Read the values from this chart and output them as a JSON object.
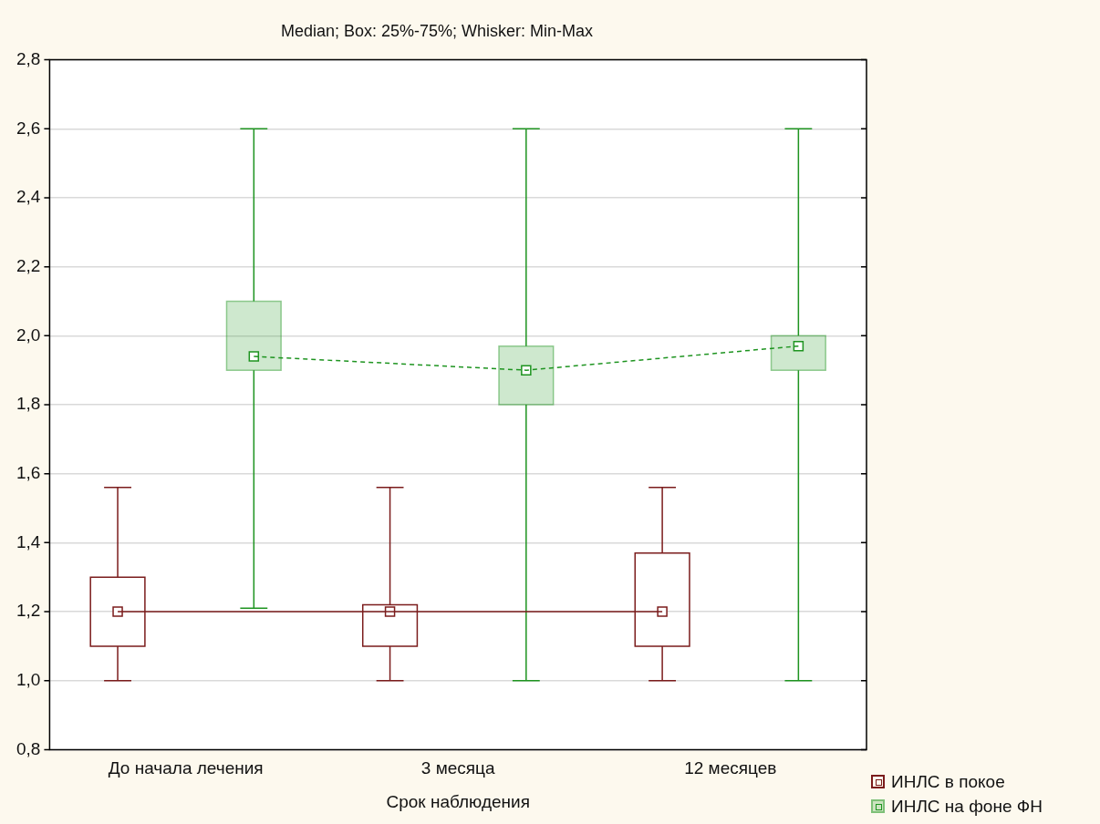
{
  "chart_data": {
    "type": "box",
    "title": "Median; Box: 25%-75%; Whisker: Min-Max",
    "xlabel": "Срок наблюдения",
    "categories": [
      "До начала лечения",
      "3 месяца",
      "12 месяцев"
    ],
    "series": [
      {
        "name": "ИНЛС в покое",
        "color": "#7b1c1c",
        "boxes": [
          {
            "low": 1.0,
            "q1": 1.1,
            "median": 1.2,
            "q3": 1.3,
            "high": 1.56
          },
          {
            "low": 1.0,
            "q1": 1.1,
            "median": 1.2,
            "q3": 1.22,
            "high": 1.56
          },
          {
            "low": 1.0,
            "q1": 1.1,
            "median": 1.2,
            "q3": 1.37,
            "high": 1.56
          }
        ]
      },
      {
        "name": "ИНЛС на фоне ФН",
        "color": "#1e9420",
        "boxes": [
          {
            "low": 1.21,
            "q1": 1.9,
            "median": 1.94,
            "q3": 2.1,
            "high": 2.6
          },
          {
            "low": 1.0,
            "q1": 1.8,
            "median": 1.9,
            "q3": 1.97,
            "high": 2.6
          },
          {
            "low": 1.0,
            "q1": 1.9,
            "median": 1.97,
            "q3": 2.0,
            "high": 2.6
          }
        ]
      },
      {
        "type": "line",
        "color": "#7b1c1c",
        "line_style": "solid",
        "marker": "none",
        "values": [
          1.2,
          1.2,
          1.2
        ]
      },
      {
        "type": "line",
        "color": "#1e9420",
        "line_style": "dashed",
        "marker": "none",
        "values": [
          1.94,
          1.9,
          1.97
        ]
      }
    ],
    "ylim": [
      0.8,
      2.8
    ],
    "yticks": [
      {
        "value": 0.8,
        "label": "0,8"
      },
      {
        "value": 1.0,
        "label": "1,0"
      },
      {
        "value": 1.2,
        "label": "1,2"
      },
      {
        "value": 1.4,
        "label": "1,4"
      },
      {
        "value": 1.6,
        "label": "1,6"
      },
      {
        "value": 1.8,
        "label": "1,8"
      },
      {
        "value": 2.0,
        "label": "2,0"
      },
      {
        "value": 2.2,
        "label": "2,2"
      },
      {
        "value": 2.4,
        "label": "2,4"
      },
      {
        "value": 2.6,
        "label": "2,6"
      },
      {
        "value": 2.8,
        "label": "2,8"
      }
    ],
    "grid": "y",
    "legend": "bottom right",
    "marker": "square"
  }
}
